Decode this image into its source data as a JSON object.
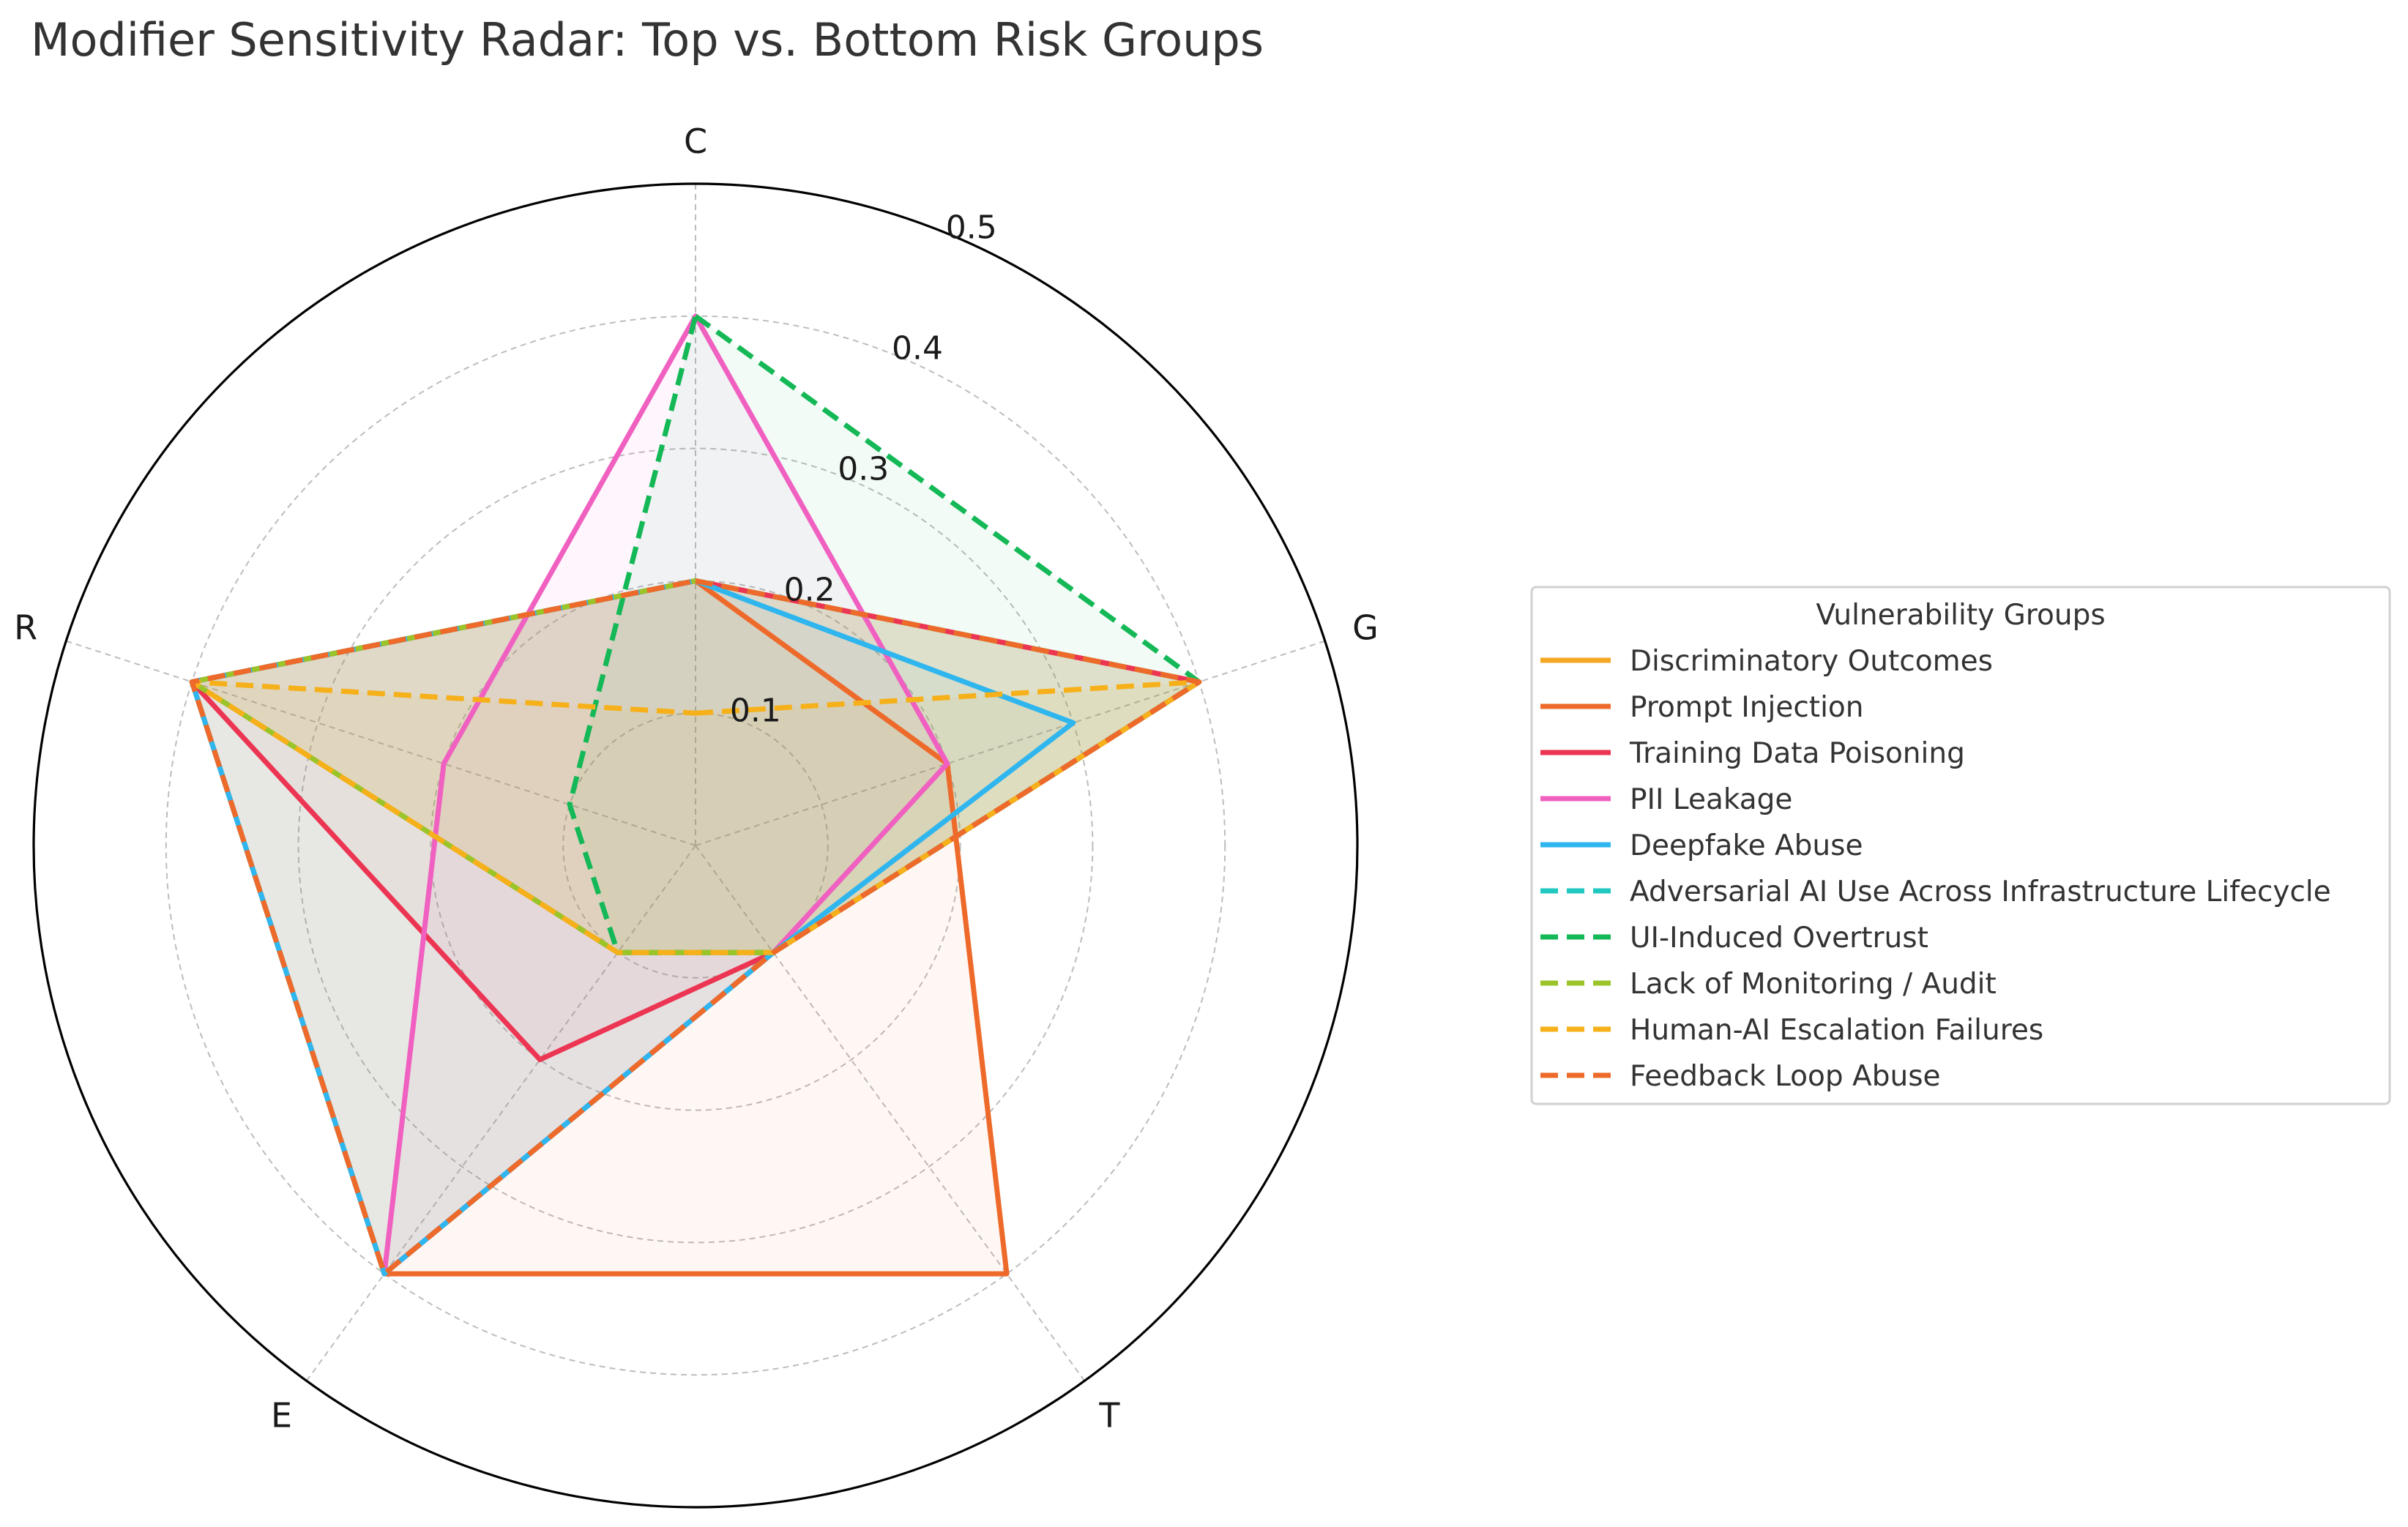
{
  "chart_data": {
    "type": "radar",
    "title": "Modifier Sensitivity Radar: Top vs. Bottom Risk Groups",
    "axes": [
      "C",
      "G",
      "T",
      "E",
      "R"
    ],
    "rlim": [
      0,
      0.5
    ],
    "rticks": [
      0.1,
      0.2,
      0.3,
      0.4,
      0.5
    ],
    "rtick_labels": [
      "0.1",
      "0.2",
      "0.3",
      "0.4",
      "0.5"
    ],
    "grid": true,
    "legend": {
      "title": "Vulnerability Groups",
      "placement": "right"
    },
    "series": [
      {
        "name": "Discriminatory Outcomes",
        "values": [
          0.2,
          0.4,
          0.1,
          0.1,
          0.4
        ],
        "color": "#F5A623",
        "dash": false
      },
      {
        "name": "Prompt Injection",
        "values": [
          0.2,
          0.2,
          0.4,
          0.4,
          0.4
        ],
        "color": "#EE6A2B",
        "dash": false
      },
      {
        "name": "Training Data Poisoning",
        "values": [
          0.2,
          0.4,
          0.1,
          0.2,
          0.4
        ],
        "color": "#EC3553",
        "dash": false
      },
      {
        "name": "PII Leakage",
        "values": [
          0.4,
          0.2,
          0.1,
          0.4,
          0.2
        ],
        "color": "#F060C0",
        "dash": false
      },
      {
        "name": "Deepfake Abuse",
        "values": [
          0.2,
          0.3,
          0.1,
          0.4,
          0.4
        ],
        "color": "#2FB6EE",
        "dash": false
      },
      {
        "name": "Adversarial AI Use Across Infrastructure Lifecycle",
        "values": [
          0.2,
          0.4,
          0.1,
          0.4,
          0.4
        ],
        "color": "#1FC8C0",
        "dash": true
      },
      {
        "name": "UI-Induced Overtrust",
        "values": [
          0.4,
          0.4,
          0.1,
          0.1,
          0.1
        ],
        "color": "#14B856",
        "dash": true
      },
      {
        "name": "Lack of Monitoring / Audit",
        "values": [
          0.2,
          0.4,
          0.1,
          0.1,
          0.4
        ],
        "color": "#9AC428",
        "dash": true
      },
      {
        "name": "Human-AI Escalation Failures",
        "values": [
          0.1,
          0.4,
          0.1,
          0.1,
          0.4
        ],
        "color": "#F5B01A",
        "dash": true
      },
      {
        "name": "Feedback Loop Abuse",
        "values": [
          0.2,
          0.4,
          0.1,
          0.4,
          0.4
        ],
        "color": "#EE6A2B",
        "dash": true
      }
    ]
  }
}
